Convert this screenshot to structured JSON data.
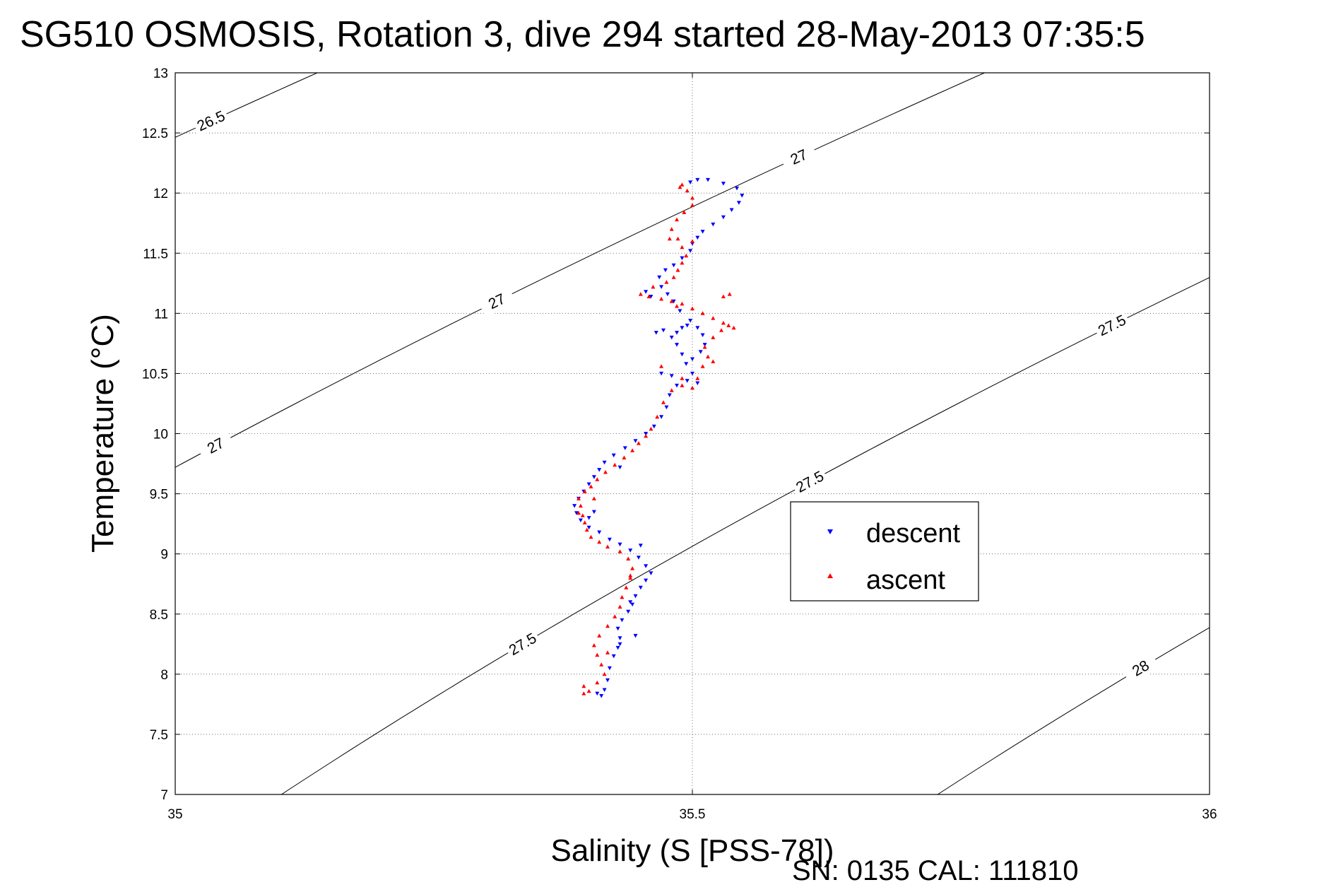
{
  "chart_data": {
    "type": "scatter",
    "title": "SG510 OSMOSIS, Rotation 3, dive 294 started 28-May-2013 07:35:5",
    "xlabel": "Salinity (S [PSS-78])",
    "ylabel": "Temperature (°C)",
    "xlim": [
      35,
      36
    ],
    "ylim": [
      7,
      13
    ],
    "x_ticks": [
      "35",
      "35.5",
      "36"
    ],
    "y_ticks": [
      "7",
      "7.5",
      "8",
      "8.5",
      "9",
      "9.5",
      "10",
      "10.5",
      "11",
      "11.5",
      "12",
      "12.5",
      "13"
    ],
    "grid": true,
    "legend_placement": "lower-right",
    "series": [
      {
        "name": "descent",
        "color": "#0000ff",
        "marker": "triangle-down",
        "points": [
          [
            35.408,
            7.84
          ],
          [
            35.415,
            7.87
          ],
          [
            35.418,
            7.95
          ],
          [
            35.42,
            8.05
          ],
          [
            35.424,
            8.15
          ],
          [
            35.428,
            8.22
          ],
          [
            35.43,
            8.3
          ],
          [
            35.428,
            8.38
          ],
          [
            35.432,
            8.45
          ],
          [
            35.438,
            8.52
          ],
          [
            35.442,
            8.58
          ],
          [
            35.445,
            8.65
          ],
          [
            35.45,
            8.72
          ],
          [
            35.455,
            8.78
          ],
          [
            35.46,
            8.84
          ],
          [
            35.455,
            8.9
          ],
          [
            35.448,
            8.97
          ],
          [
            35.44,
            9.03
          ],
          [
            35.43,
            9.08
          ],
          [
            35.42,
            9.12
          ],
          [
            35.41,
            9.18
          ],
          [
            35.4,
            9.22
          ],
          [
            35.392,
            9.28
          ],
          [
            35.388,
            9.34
          ],
          [
            35.386,
            9.4
          ],
          [
            35.39,
            9.46
          ],
          [
            35.395,
            9.52
          ],
          [
            35.4,
            9.58
          ],
          [
            35.405,
            9.64
          ],
          [
            35.41,
            9.7
          ],
          [
            35.415,
            9.76
          ],
          [
            35.424,
            9.82
          ],
          [
            35.435,
            9.88
          ],
          [
            35.445,
            9.94
          ],
          [
            35.455,
            10.0
          ],
          [
            35.463,
            10.06
          ],
          [
            35.47,
            10.14
          ],
          [
            35.475,
            10.22
          ],
          [
            35.478,
            10.32
          ],
          [
            35.485,
            10.4
          ],
          [
            35.495,
            10.44
          ],
          [
            35.505,
            10.42
          ],
          [
            35.5,
            10.5
          ],
          [
            35.494,
            10.58
          ],
          [
            35.49,
            10.66
          ],
          [
            35.485,
            10.74
          ],
          [
            35.48,
            10.8
          ],
          [
            35.485,
            10.84
          ],
          [
            35.49,
            10.88
          ],
          [
            35.498,
            10.94
          ],
          [
            35.505,
            10.88
          ],
          [
            35.51,
            10.82
          ],
          [
            35.512,
            10.74
          ],
          [
            35.508,
            10.68
          ],
          [
            35.5,
            10.62
          ],
          [
            35.495,
            10.9
          ],
          [
            35.488,
            11.02
          ],
          [
            35.482,
            11.1
          ],
          [
            35.476,
            11.16
          ],
          [
            35.47,
            11.22
          ],
          [
            35.468,
            11.3
          ],
          [
            35.474,
            11.36
          ],
          [
            35.482,
            11.4
          ],
          [
            35.49,
            11.46
          ],
          [
            35.498,
            11.52
          ],
          [
            35.5,
            11.58
          ],
          [
            35.505,
            11.63
          ],
          [
            35.51,
            11.68
          ],
          [
            35.52,
            11.74
          ],
          [
            35.53,
            11.8
          ],
          [
            35.538,
            11.86
          ],
          [
            35.545,
            11.92
          ],
          [
            35.548,
            11.98
          ],
          [
            35.543,
            12.04
          ],
          [
            35.53,
            12.08
          ],
          [
            35.515,
            12.11
          ],
          [
            35.505,
            12.11
          ],
          [
            35.498,
            12.09
          ],
          [
            35.455,
            11.18
          ],
          [
            35.46,
            11.14
          ],
          [
            35.465,
            10.84
          ],
          [
            35.472,
            10.86
          ],
          [
            35.48,
            10.48
          ],
          [
            35.47,
            10.5
          ],
          [
            35.43,
            9.72
          ],
          [
            35.45,
            9.07
          ],
          [
            35.445,
            8.32
          ],
          [
            35.43,
            8.25
          ],
          [
            35.412,
            7.82
          ],
          [
            35.405,
            9.35
          ],
          [
            35.4,
            9.3
          ],
          [
            35.44,
            8.6
          ]
        ]
      },
      {
        "name": "ascent",
        "color": "#ff0000",
        "marker": "triangle-up",
        "points": [
          [
            35.4,
            7.86
          ],
          [
            35.395,
            7.9
          ],
          [
            35.408,
            7.93
          ],
          [
            35.415,
            8.0
          ],
          [
            35.412,
            8.08
          ],
          [
            35.408,
            8.16
          ],
          [
            35.405,
            8.24
          ],
          [
            35.41,
            8.32
          ],
          [
            35.418,
            8.4
          ],
          [
            35.425,
            8.48
          ],
          [
            35.43,
            8.56
          ],
          [
            35.432,
            8.64
          ],
          [
            35.436,
            8.72
          ],
          [
            35.44,
            8.8
          ],
          [
            35.442,
            8.88
          ],
          [
            35.438,
            8.96
          ],
          [
            35.43,
            9.02
          ],
          [
            35.418,
            9.06
          ],
          [
            35.41,
            9.1
          ],
          [
            35.402,
            9.14
          ],
          [
            35.398,
            9.2
          ],
          [
            35.396,
            9.26
          ],
          [
            35.394,
            9.32
          ],
          [
            35.392,
            9.4
          ],
          [
            35.39,
            9.46
          ],
          [
            35.396,
            9.52
          ],
          [
            35.402,
            9.56
          ],
          [
            35.408,
            9.62
          ],
          [
            35.416,
            9.68
          ],
          [
            35.425,
            9.74
          ],
          [
            35.434,
            9.8
          ],
          [
            35.442,
            9.86
          ],
          [
            35.448,
            9.92
          ],
          [
            35.455,
            9.98
          ],
          [
            35.46,
            10.04
          ],
          [
            35.466,
            10.14
          ],
          [
            35.472,
            10.26
          ],
          [
            35.48,
            10.36
          ],
          [
            35.49,
            10.4
          ],
          [
            35.5,
            10.38
          ],
          [
            35.505,
            10.46
          ],
          [
            35.51,
            10.56
          ],
          [
            35.515,
            10.64
          ],
          [
            35.512,
            10.72
          ],
          [
            35.52,
            10.8
          ],
          [
            35.528,
            10.86
          ],
          [
            35.535,
            10.9
          ],
          [
            35.54,
            10.88
          ],
          [
            35.53,
            10.92
          ],
          [
            35.52,
            10.96
          ],
          [
            35.51,
            11.0
          ],
          [
            35.5,
            11.04
          ],
          [
            35.49,
            11.08
          ],
          [
            35.48,
            11.1
          ],
          [
            35.47,
            11.12
          ],
          [
            35.458,
            11.14
          ],
          [
            35.45,
            11.16
          ],
          [
            35.462,
            11.22
          ],
          [
            35.475,
            11.26
          ],
          [
            35.482,
            11.3
          ],
          [
            35.486,
            11.36
          ],
          [
            35.49,
            11.42
          ],
          [
            35.494,
            11.48
          ],
          [
            35.49,
            11.55
          ],
          [
            35.486,
            11.62
          ],
          [
            35.48,
            11.7
          ],
          [
            35.485,
            11.78
          ],
          [
            35.492,
            11.84
          ],
          [
            35.5,
            11.9
          ],
          [
            35.5,
            11.96
          ],
          [
            35.495,
            12.02
          ],
          [
            35.488,
            12.05
          ],
          [
            35.49,
            12.07
          ],
          [
            35.478,
            11.62
          ],
          [
            35.53,
            11.14
          ],
          [
            35.536,
            11.16
          ],
          [
            35.5,
            11.6
          ],
          [
            35.49,
            10.46
          ],
          [
            35.52,
            10.6
          ],
          [
            35.405,
            9.46
          ],
          [
            35.39,
            9.34
          ],
          [
            35.44,
            8.82
          ],
          [
            35.418,
            8.18
          ],
          [
            35.395,
            7.84
          ],
          [
            35.47,
            10.56
          ],
          [
            35.485,
            11.06
          ]
        ]
      }
    ],
    "contours": [
      {
        "level": "26.5",
        "label": "26.5"
      },
      {
        "level": "27",
        "label": "27"
      },
      {
        "level": "27.5",
        "label": "27.5"
      },
      {
        "level": "28",
        "label": "28"
      }
    ]
  },
  "footer": {
    "serial": "SN: 0135  CAL: 111810"
  }
}
